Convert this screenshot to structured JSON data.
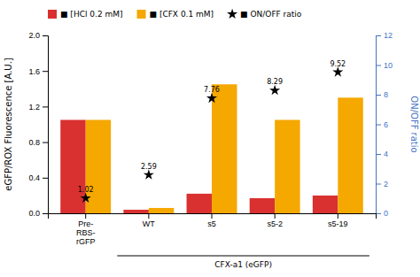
{
  "chart_data": {
    "type": "bar",
    "categories": [
      "Pre-\nRBS-\nrGFP",
      "WT",
      "s5",
      "s5-2",
      "s5-19"
    ],
    "series": [
      {
        "name": "■  [HCl 0.2 mM]",
        "color": "#d93030",
        "values": [
          1.05,
          0.04,
          0.22,
          0.17,
          0.2
        ]
      },
      {
        "name": "■  [CFX 0.1 mM]",
        "color": "#f5a800",
        "values": [
          1.05,
          0.06,
          1.45,
          1.05,
          1.3
        ]
      },
      {
        "name": "■  ON/OFF ratio",
        "type": "scatter",
        "marker": "star",
        "color": "black",
        "axis": "y2",
        "data_labels": true,
        "values": [
          1.02,
          2.59,
          7.76,
          8.29,
          9.52
        ]
      }
    ],
    "ylabel": "eGFP/ROX Fluorescence [A.U.]",
    "y2label": "ON/OFF ratio",
    "ylim": [
      0,
      2.0
    ],
    "yticks": [
      {
        "value": 0,
        "label": "0.0"
      },
      0.4,
      0.8,
      1.2,
      1.6,
      {
        "value": 2.0,
        "label": "2.0"
      }
    ],
    "y2lim": [
      0,
      12
    ],
    "y2ticks": [
      0,
      2,
      4,
      6,
      8,
      10,
      12
    ],
    "annotations": [
      {
        "text": "CFX-a1 (eGFP)"
      }
    ],
    "legend": "top",
    "grid": false
  }
}
